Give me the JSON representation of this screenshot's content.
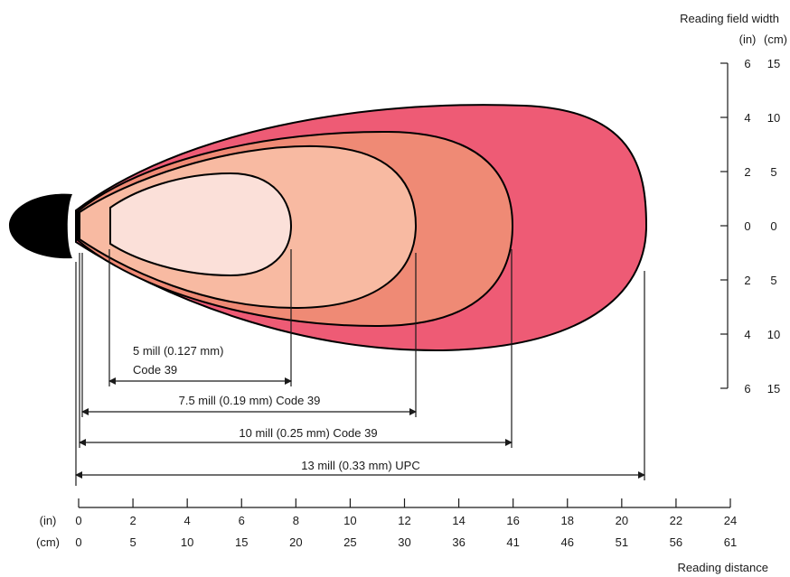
{
  "colors": {
    "zone_13": "#ee5b75",
    "zone_10": "#ef8a75",
    "zone_75": "#f8baa2",
    "zone_5": "#fbe0d9",
    "scanner": "#000000"
  },
  "right_axis": {
    "title": "Reading field width",
    "unit_in": "(in)",
    "unit_cm": "(cm)",
    "ticks_in": [
      "6",
      "4",
      "2",
      "0",
      "2",
      "4",
      "6"
    ],
    "ticks_cm": [
      "15",
      "10",
      "5",
      "0",
      "5",
      "10",
      "15"
    ]
  },
  "bottom_axis": {
    "title": "Reading distance",
    "unit_in": "(in)",
    "unit_cm": "(cm)",
    "ticks_in": [
      "0",
      "2",
      "4",
      "6",
      "8",
      "10",
      "12",
      "14",
      "16",
      "18",
      "20",
      "22",
      "24"
    ],
    "ticks_cm": [
      "0",
      "5",
      "10",
      "15",
      "20",
      "25",
      "30",
      "36",
      "41",
      "46",
      "51",
      "56",
      "61"
    ]
  },
  "zones": [
    {
      "label_line1": "5 mill (0.127 mm)",
      "label_line2": "Code 39"
    },
    {
      "label": "7.5 mill (0.19 mm) Code 39"
    },
    {
      "label": "10 mill (0.25 mm) Code 39"
    },
    {
      "label": "13 mill (0.33 mm) UPC"
    }
  ]
}
